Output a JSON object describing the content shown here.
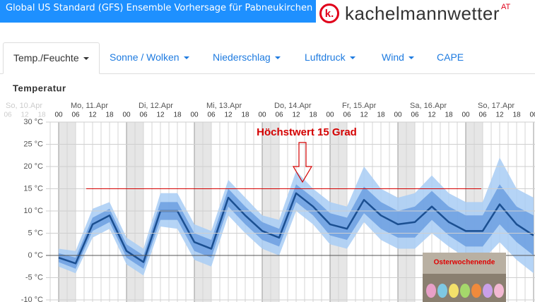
{
  "header": {
    "title": "Global US Standard (GFS) Ensemble Vorhersage für Pabneukirchen",
    "logo_mark": "k.",
    "logo_text": "kachelmannwetter",
    "logo_suffix": "AT"
  },
  "tabs": [
    "Temp./Feuchte",
    "Sonne / Wolken",
    "Niederschlag",
    "Luftdruck",
    "Wind",
    "CAPE"
  ],
  "image_caption": "Osterwochenende",
  "chart_data": {
    "type": "band-line",
    "title": "Temperatur",
    "days": [
      "So, 10.Apr",
      "Mo, 11.Apr",
      "Di, 12.Apr",
      "Mi, 13.Apr",
      "Do, 14.Apr",
      "Fr, 15.Apr",
      "Sa, 16.Apr",
      "So, 17.Apr"
    ],
    "categories": [
      "06",
      "12",
      "18",
      "00",
      "06",
      "12",
      "18",
      "00",
      "06",
      "12",
      "18",
      "00",
      "06",
      "12",
      "18",
      "00",
      "06",
      "12",
      "18",
      "00",
      "06",
      "12",
      "18",
      "00",
      "06",
      "12",
      "18",
      "00",
      "06",
      "12",
      "18",
      "00"
    ],
    "ylim": [
      -10,
      30
    ],
    "yticks": [
      {
        "value": 30,
        "label": "30 °C"
      },
      {
        "value": 25,
        "label": "25 °C"
      },
      {
        "value": 20,
        "label": "20 °C"
      },
      {
        "value": 15,
        "label": "15 °C"
      },
      {
        "value": 10,
        "label": "10 °C"
      },
      {
        "value": 5,
        "label": "5 °C"
      },
      {
        "value": 0,
        "label": "0 °C"
      },
      {
        "value": -5,
        "label": "-5 °C"
      },
      {
        "value": -10,
        "label": "-10 °C"
      }
    ],
    "grid": true,
    "bands": [
      {
        "color": "#a8cdf5",
        "low": [
          null,
          null,
          null,
          -2.5,
          -4,
          4,
          6,
          -2,
          -4.5,
          6.5,
          6,
          -1,
          -2.5,
          9,
          5,
          1.5,
          0,
          10,
          7,
          2.5,
          1.5,
          7.5,
          3.5,
          1.5,
          1.5,
          5,
          2,
          -0.5,
          -1,
          3,
          -1,
          -4
        ],
        "high": [
          null,
          null,
          null,
          1.5,
          1,
          10.5,
          12,
          4,
          1.5,
          14,
          14,
          7,
          5.5,
          17,
          13,
          9,
          8,
          19,
          15,
          12,
          11,
          20,
          15,
          13,
          14,
          18,
          14,
          12,
          12,
          22,
          15,
          13
        ]
      },
      {
        "color": "#6c9fe0",
        "low": [
          null,
          null,
          null,
          -1.5,
          -3,
          5.5,
          7.5,
          -0.5,
          -3,
          8,
          8,
          1,
          -0.5,
          11,
          7,
          3.5,
          2,
          12,
          9,
          4.5,
          3.5,
          9.5,
          6,
          4,
          4,
          8,
          4.5,
          2,
          2,
          7,
          3,
          0
        ],
        "high": [
          null,
          null,
          null,
          0.5,
          -0.5,
          8.5,
          10.5,
          2.5,
          0,
          12,
          12,
          5,
          3.5,
          15,
          11,
          7.5,
          6,
          16,
          13,
          9.5,
          8.5,
          15.5,
          12,
          10,
          11,
          14.5,
          11,
          9,
          9,
          16,
          11,
          9
        ]
      }
    ],
    "series": [
      {
        "color": "#1b4f91",
        "values": [
          null,
          null,
          null,
          -0.5,
          -1.8,
          7,
          9,
          1,
          -1.5,
          10,
          10,
          3,
          1.5,
          13,
          9,
          5.5,
          4,
          14,
          11,
          7,
          6,
          12.5,
          9,
          7,
          7.5,
          11,
          7.5,
          5.5,
          5.5,
          11.5,
          7,
          4.5
        ]
      }
    ],
    "annotation": {
      "text": "Höchstwert 15 Grad",
      "value": 15,
      "color": "#d40000"
    }
  }
}
